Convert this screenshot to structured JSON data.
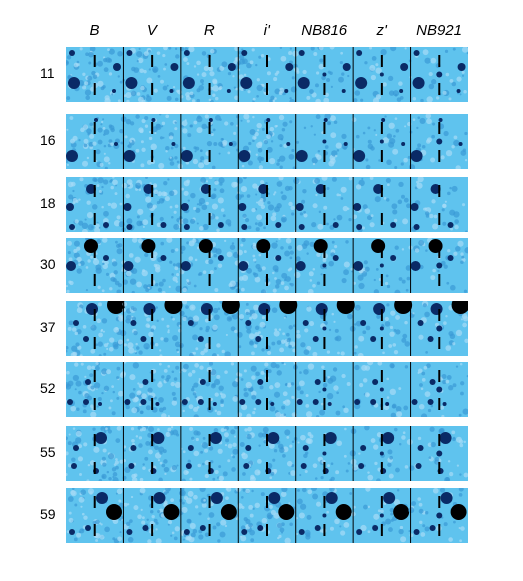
{
  "bands": [
    "B",
    "V",
    "R",
    "i'",
    "NB816",
    "z'",
    "NB921"
  ],
  "objects": [
    "11",
    "16",
    "18",
    "30",
    "37",
    "52",
    "55",
    "59"
  ],
  "colors": {
    "background": "#5fc3ee",
    "light": "#a6dcf6",
    "dark": "#0a2a66",
    "black": "#000000"
  }
}
